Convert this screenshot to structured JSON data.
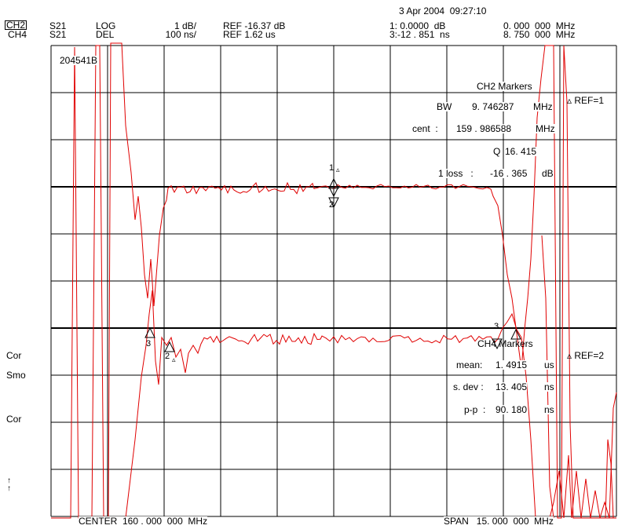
{
  "header": {
    "datetime": "3 Apr 2004  09:27:10",
    "ch2": {
      "name": "CH2",
      "param": "S21",
      "format": "LOG",
      "scale": "1 dB/",
      "ref": "REF -16.37 dB",
      "marker": "1: 0.0000  dB",
      "marker_freq": "0. 000  000  MHz"
    },
    "ch4": {
      "name": "CH4",
      "param": "S21",
      "format": "DEL",
      "scale": "100 ns/",
      "ref": "REF 1.62 us",
      "marker": "3:-12 . 851  ns",
      "marker_freq": "8. 750  000  MHz"
    }
  },
  "left_softkeys": [
    "Cor",
    "Smo",
    "Cor",
    "↑",
    "↑"
  ],
  "grid_label": "204541B",
  "ch2_markers": {
    "title": "CH2 Markers",
    "ref": "▵ REF=1",
    "bw_label": "BW",
    "bw_value": "9. 746287",
    "bw_unit": "MHz",
    "cent_label": "cent  :",
    "cent_value": "159 . 986588",
    "cent_unit": "MHz",
    "q_label": "Q",
    "q_value": "16. 415",
    "loss_label": "1 loss   :",
    "loss_value": "-16 . 365",
    "loss_unit": "dB"
  },
  "ch4_markers": {
    "title": "CH4 Markers",
    "ref": "▵ REF=2",
    "mean_label": "mean:",
    "mean_value": "1. 4915",
    "mean_unit": "us",
    "sdev_label": "s. dev :",
    "sdev_value": "13. 405",
    "sdev_unit": "ns",
    "pp_label": "p-p  :",
    "pp_value": "90. 180",
    "pp_unit": "ns"
  },
  "marker_labels": {
    "m1": "1",
    "m1b": "1",
    "m2": "2",
    "m3": "3",
    "m3b": "3",
    "m2b": "2",
    "tri": "▵"
  },
  "footer": {
    "center": "CENTER  160 . 000  000  MHz",
    "span": "SPAN   15. 000  000  MHz"
  },
  "trace_color": "#e00000"
}
